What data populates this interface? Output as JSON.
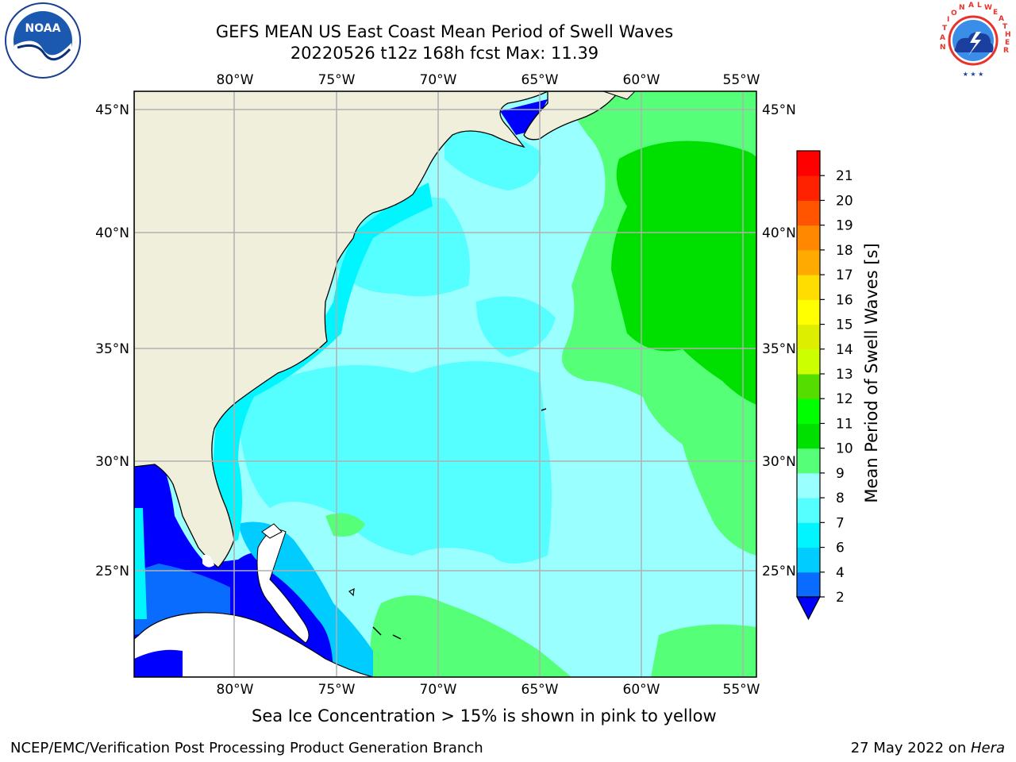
{
  "title_line1": "GEFS MEAN US East Coast Mean Period of Swell Waves",
  "title_line2": "20220526 t12z 168h fcst   Max: 11.39",
  "logos": {
    "left": {
      "icon": "noaa-logo-icon",
      "text": "NOAA"
    },
    "right": {
      "icon": "national-weather-service-logo-icon",
      "text": "NATIONAL WEATHER SERVICE"
    }
  },
  "map": {
    "lon_labels": [
      "80°W",
      "75°W",
      "70°W",
      "65°W",
      "60°W",
      "55°W"
    ],
    "lat_labels": [
      "45°N",
      "40°N",
      "35°N",
      "30°N",
      "25°N"
    ],
    "land_color": "#efefdc",
    "grid_color": "#b0b0b0"
  },
  "colorbar": {
    "label": "Mean Period of Swell Waves [s]",
    "ticks": [
      "2",
      "4",
      "6",
      "7",
      "8",
      "9",
      "10",
      "11",
      "12",
      "13",
      "14",
      "15",
      "16",
      "17",
      "18",
      "19",
      "20",
      "21"
    ],
    "colors": [
      "#0a6cff",
      "#00ccff",
      "#00f5ff",
      "#55ffff",
      "#99ffff",
      "#55ff77",
      "#00e000",
      "#00ff00",
      "#55dd00",
      "#ccff00",
      "#ddee00",
      "#ffff00",
      "#ffdd00",
      "#ffaa00",
      "#ff8800",
      "#ff5500",
      "#ff2200",
      "#ff0000"
    ],
    "extend_color": "#0000ff"
  },
  "note": "Sea Ice Concentration > 15% is shown in pink to yellow",
  "footer_left": "NCEP/EMC/Verification Post Processing Product Generation Branch",
  "footer_right_prefix": "27 May 2022 on ",
  "footer_right_machine": "Hera"
}
